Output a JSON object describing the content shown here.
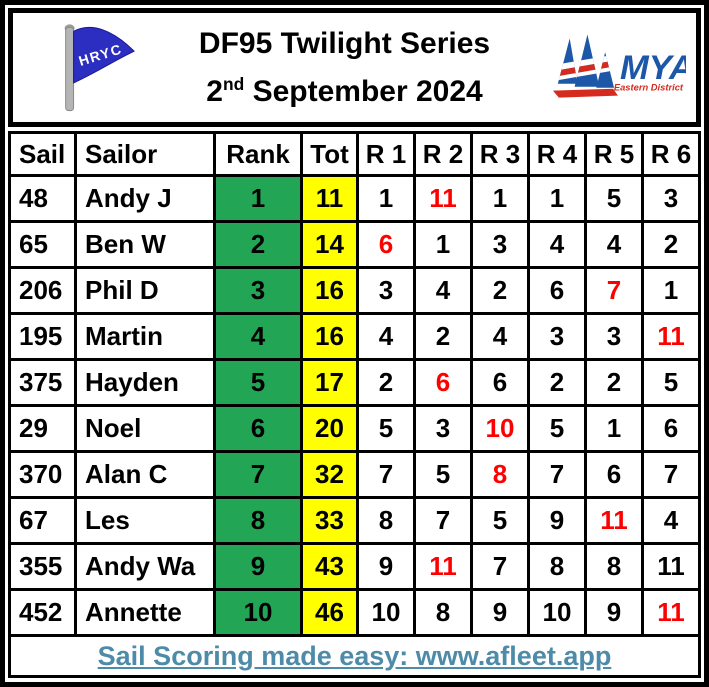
{
  "header": {
    "club_flag_text": "HRYC",
    "title": "DF95 Twilight Series",
    "date_prefix": "2",
    "date_ordinal": "nd",
    "date_suffix": " September 2024",
    "mya_text": "MYA",
    "mya_subtext": "Eastern District"
  },
  "table": {
    "columns": [
      "Sail",
      "Sailor",
      "Rank",
      "Tot",
      "R 1",
      "R 2",
      "R 3",
      "R 4",
      "R 5",
      "R 6"
    ],
    "rows": [
      {
        "sail": "48",
        "sailor": "Andy J",
        "rank": "1",
        "tot": "11",
        "races": [
          {
            "v": "1"
          },
          {
            "v": "11",
            "discard": true
          },
          {
            "v": "1"
          },
          {
            "v": "1"
          },
          {
            "v": "5"
          },
          {
            "v": "3"
          }
        ]
      },
      {
        "sail": "65",
        "sailor": "Ben W",
        "rank": "2",
        "tot": "14",
        "races": [
          {
            "v": "6",
            "discard": true
          },
          {
            "v": "1"
          },
          {
            "v": "3"
          },
          {
            "v": "4"
          },
          {
            "v": "4"
          },
          {
            "v": "2"
          }
        ]
      },
      {
        "sail": "206",
        "sailor": "Phil D",
        "rank": "3",
        "tot": "16",
        "races": [
          {
            "v": "3"
          },
          {
            "v": "4"
          },
          {
            "v": "2"
          },
          {
            "v": "6"
          },
          {
            "v": "7",
            "discard": true
          },
          {
            "v": "1"
          }
        ]
      },
      {
        "sail": "195",
        "sailor": "Martin",
        "rank": "4",
        "tot": "16",
        "races": [
          {
            "v": "4"
          },
          {
            "v": "2"
          },
          {
            "v": "4"
          },
          {
            "v": "3"
          },
          {
            "v": "3"
          },
          {
            "v": "11",
            "discard": true
          }
        ]
      },
      {
        "sail": "375",
        "sailor": "Hayden",
        "rank": "5",
        "tot": "17",
        "races": [
          {
            "v": "2"
          },
          {
            "v": "6",
            "discard": true
          },
          {
            "v": "6"
          },
          {
            "v": "2"
          },
          {
            "v": "2"
          },
          {
            "v": "5"
          }
        ]
      },
      {
        "sail": "29",
        "sailor": "Noel",
        "rank": "6",
        "tot": "20",
        "races": [
          {
            "v": "5"
          },
          {
            "v": "3"
          },
          {
            "v": "10",
            "discard": true
          },
          {
            "v": "5"
          },
          {
            "v": "1"
          },
          {
            "v": "6"
          }
        ]
      },
      {
        "sail": "370",
        "sailor": "Alan C",
        "rank": "7",
        "tot": "32",
        "races": [
          {
            "v": "7"
          },
          {
            "v": "5"
          },
          {
            "v": "8",
            "discard": true
          },
          {
            "v": "7"
          },
          {
            "v": "6"
          },
          {
            "v": "7"
          }
        ]
      },
      {
        "sail": "67",
        "sailor": "Les",
        "rank": "8",
        "tot": "33",
        "races": [
          {
            "v": "8"
          },
          {
            "v": "7"
          },
          {
            "v": "5"
          },
          {
            "v": "9"
          },
          {
            "v": "11",
            "discard": true
          },
          {
            "v": "4"
          }
        ]
      },
      {
        "sail": "355",
        "sailor": "Andy Wa",
        "rank": "9",
        "tot": "43",
        "races": [
          {
            "v": "9"
          },
          {
            "v": "11",
            "discard": true
          },
          {
            "v": "7"
          },
          {
            "v": "8"
          },
          {
            "v": "8"
          },
          {
            "v": "11"
          }
        ]
      },
      {
        "sail": "452",
        "sailor": "Annette",
        "rank": "10",
        "tot": "46",
        "races": [
          {
            "v": "10"
          },
          {
            "v": "8"
          },
          {
            "v": "9"
          },
          {
            "v": "10"
          },
          {
            "v": "9"
          },
          {
            "v": "11",
            "discard": true
          }
        ]
      }
    ]
  },
  "footer": {
    "link_text": "Sail Scoring made easy: www.afleet.app"
  },
  "colors": {
    "rank_bg": "#22A555",
    "tot_bg": "#FFFF00",
    "discard": "#FF0000",
    "link": "#4E8BA9",
    "flag_blue": "#2B2EC0",
    "flag_pole": "#B5B5B5",
    "mya_blue": "#1C57A8",
    "mya_red": "#D42B1E"
  }
}
